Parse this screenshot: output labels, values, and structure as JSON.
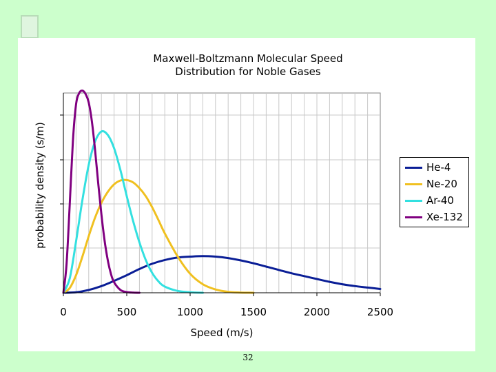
{
  "page": {
    "number": "32"
  },
  "chart_data": {
    "type": "line",
    "title": "Maxwell-Boltzmann Molecular Speed",
    "subtitle": "Distribution for Noble Gases",
    "xlabel": "Speed (m/s)",
    "ylabel": "probability density (s/m)",
    "xlim": [
      0,
      2500
    ],
    "ylim": [
      0,
      0.0042
    ],
    "x_ticks": [
      "0",
      "500",
      "1000",
      "1500",
      "2000",
      "2500"
    ],
    "grid": true,
    "legend_position": "right",
    "series": [
      {
        "name": "He-4",
        "color": "#0a1e96",
        "x": [
          0,
          100,
          200,
          300,
          400,
          500,
          600,
          700,
          800,
          900,
          1000,
          1100,
          1200,
          1300,
          1400,
          1500,
          1600,
          1700,
          1800,
          1900,
          2000,
          2100,
          2200,
          2300,
          2400,
          2500
        ],
        "y": [
          0,
          1e-05,
          6e-05,
          0.00014,
          0.00025,
          0.00037,
          0.0005,
          0.00061,
          0.00069,
          0.00074,
          0.00076,
          0.00077,
          0.00076,
          0.00073,
          0.00068,
          0.00062,
          0.00055,
          0.00048,
          0.00041,
          0.00035,
          0.00029,
          0.00023,
          0.00018,
          0.00014,
          0.00011,
          8e-05
        ]
      },
      {
        "name": "Ne-20",
        "color": "#f0c020",
        "x": [
          0,
          50,
          100,
          150,
          200,
          250,
          300,
          350,
          400,
          450,
          500,
          550,
          600,
          650,
          700,
          750,
          800,
          900,
          1000,
          1100,
          1200,
          1300,
          1400,
          1500
        ],
        "y": [
          0,
          0.0001,
          0.00037,
          0.00076,
          0.00119,
          0.00158,
          0.00189,
          0.00212,
          0.00228,
          0.00236,
          0.00237,
          0.00232,
          0.0022,
          0.00203,
          0.0018,
          0.00153,
          0.00125,
          0.00077,
          0.0004,
          0.00018,
          7e-05,
          2e-05,
          5e-06,
          0
        ]
      },
      {
        "name": "Ar-40",
        "color": "#33e0e0",
        "x": [
          0,
          50,
          100,
          150,
          200,
          250,
          300,
          350,
          400,
          450,
          500,
          550,
          600,
          650,
          700,
          750,
          800,
          900,
          1000,
          1100
        ],
        "y": [
          0,
          0.0003,
          0.00108,
          0.00195,
          0.00269,
          0.00318,
          0.00339,
          0.00332,
          0.00304,
          0.00258,
          0.00203,
          0.00151,
          0.00106,
          0.00069,
          0.00042,
          0.00024,
          0.00013,
          4e-05,
          1e-05,
          0
        ]
      },
      {
        "name": "Xe-132",
        "color": "#800080",
        "x": [
          0,
          25,
          50,
          75,
          100,
          125,
          150,
          175,
          200,
          225,
          250,
          275,
          300,
          325,
          350,
          375,
          400,
          450,
          500,
          550,
          600
        ],
        "y": [
          0,
          0.0006,
          0.00185,
          0.00318,
          0.00396,
          0.0042,
          0.00425,
          0.00418,
          0.004,
          0.0036,
          0.003,
          0.0023,
          0.00165,
          0.0011,
          0.00069,
          0.0004,
          0.00022,
          6e-05,
          1.5e-05,
          3e-06,
          0
        ]
      }
    ]
  }
}
